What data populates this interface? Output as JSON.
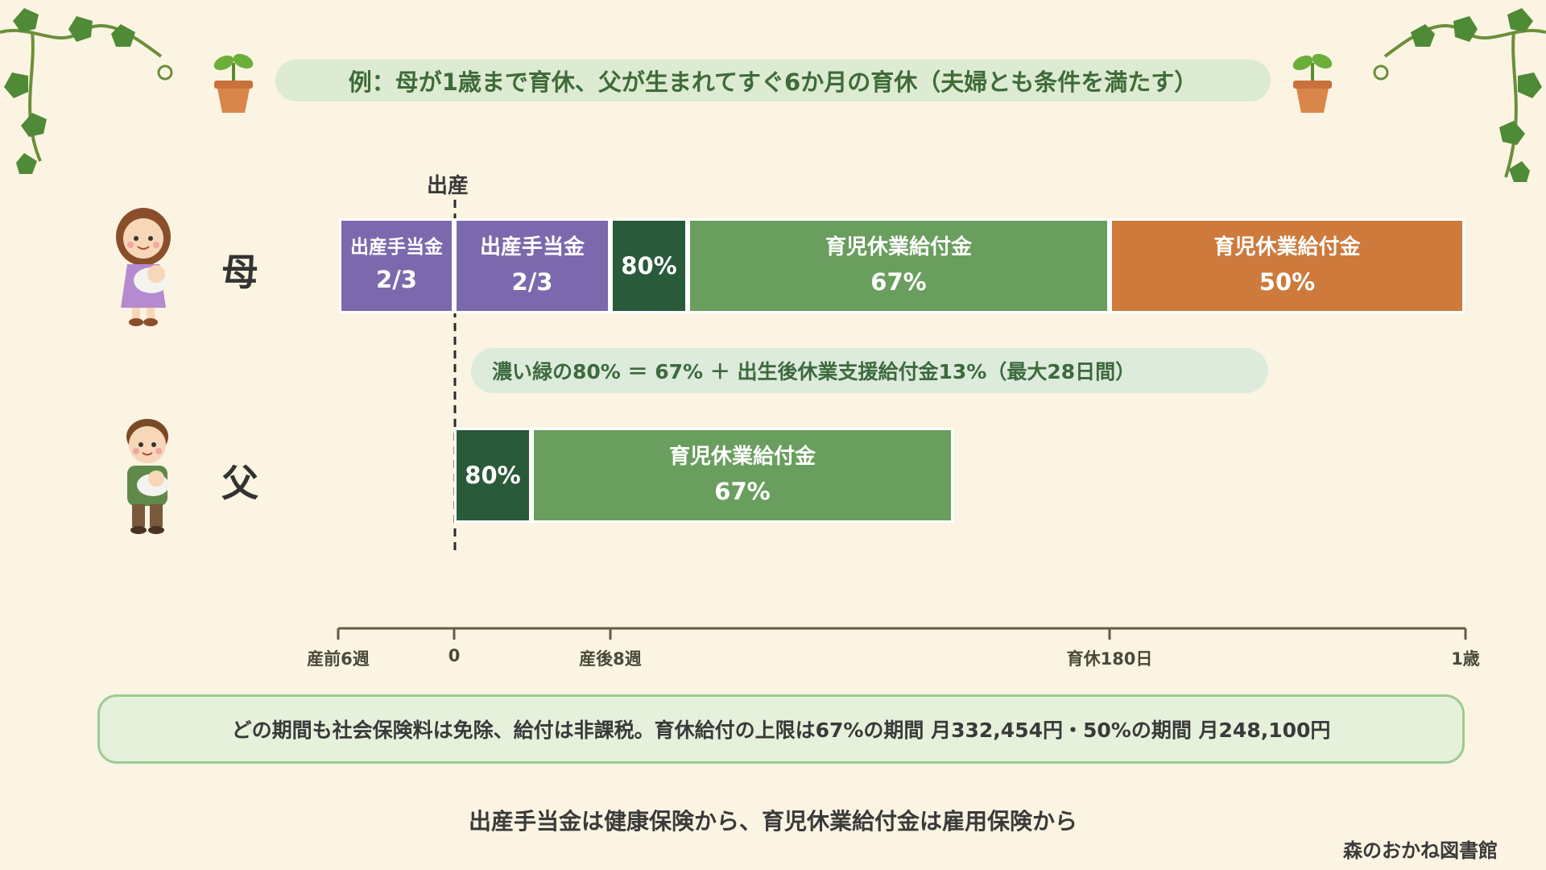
{
  "title": "例：母が1歳まで育休、父が生まれてすぐ6か月の育休（夫婦とも条件を満たす）",
  "birth_label": "出産",
  "rows": {
    "mother": {
      "label": "母",
      "segments": [
        {
          "line1": "出産手当金",
          "line2": "2/3"
        },
        {
          "line1": "出産手当金",
          "line2": "2/3"
        },
        {
          "line1": "",
          "line2": "80%"
        },
        {
          "line1": "育児休業給付金",
          "line2": "67%"
        },
        {
          "line1": "育児休業給付金",
          "line2": "50%"
        }
      ]
    },
    "father": {
      "label": "父",
      "segments": [
        {
          "line1": "",
          "line2": "80%"
        },
        {
          "line1": "育児休業給付金",
          "line2": "67%"
        }
      ]
    }
  },
  "note": "濃い緑の80% ＝ 67% ＋ 出生後休業支援給付金13%（最大28日間）",
  "timeline": {
    "ticks": [
      "産前6週",
      "0",
      "産後8週",
      "育休180日",
      "1歳"
    ]
  },
  "info_box": "どの期間も社会保険料は免除、給付は非課税。育休給付の上限は67%の期間 月332,454円・50%の期間 月248,100円",
  "source_line": "出産手当金は健康保険から、育児休業給付金は雇用保険から",
  "brand": "森のおかね図書館",
  "colors": {
    "maternity_allowance": "#7c69ad",
    "benefit_80": "#295a3a",
    "benefit_67": "#6a9e5e",
    "benefit_50": "#cd7a3c",
    "background": "#fbf4e3"
  },
  "icons": [
    "ivy-vine-icon",
    "potted-sprout-icon",
    "mother-with-baby-icon",
    "father-with-baby-icon"
  ]
}
